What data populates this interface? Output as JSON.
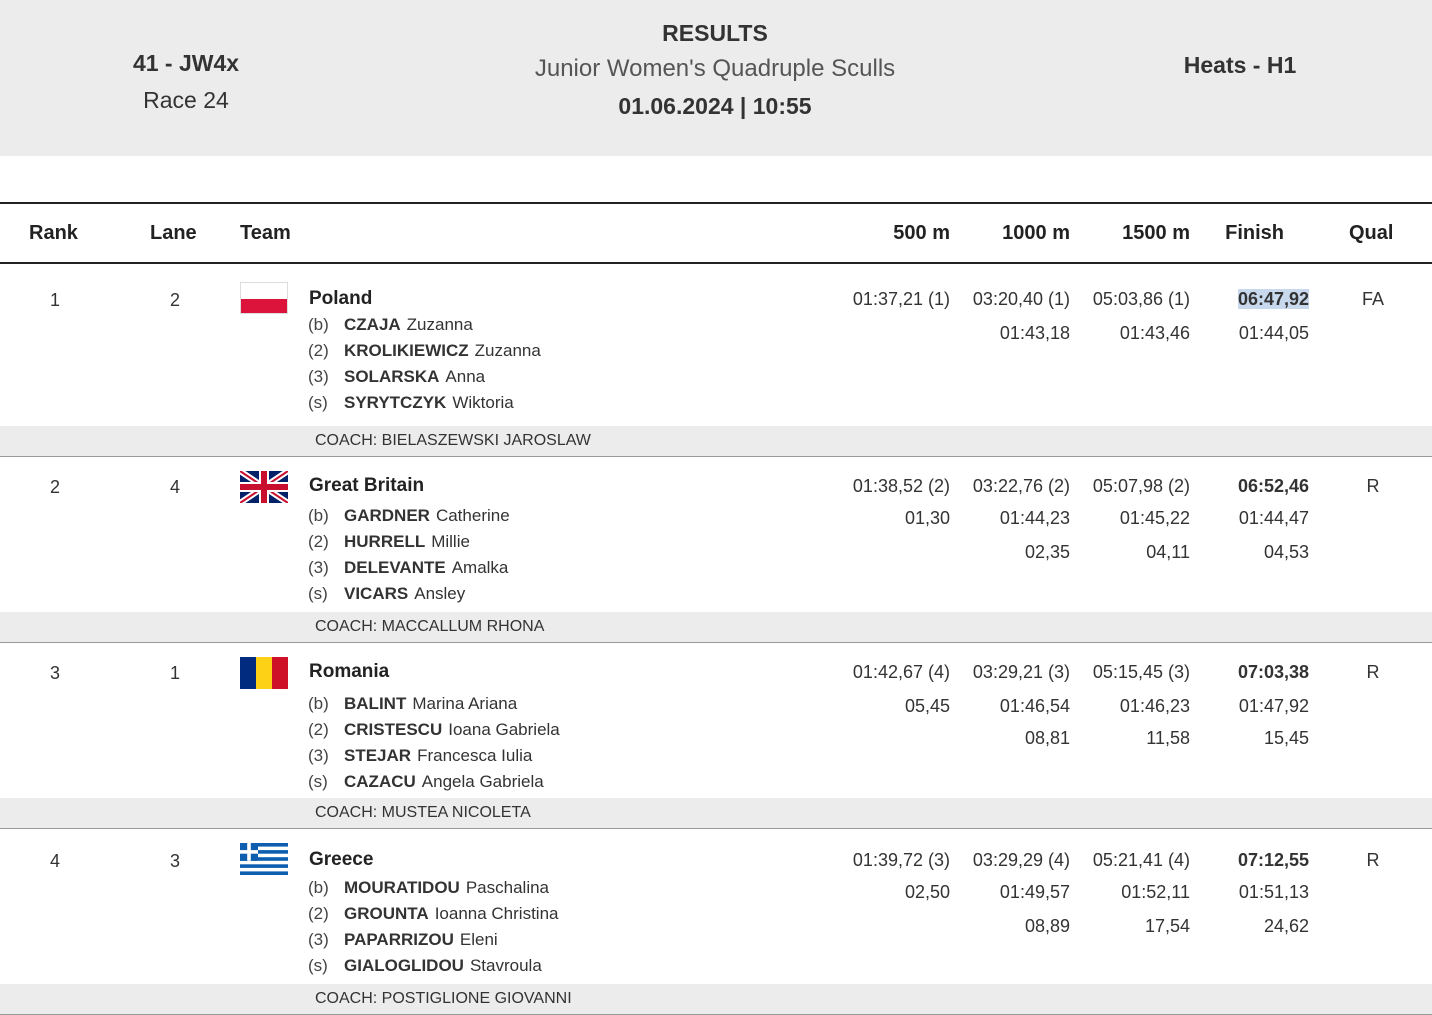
{
  "header": {
    "race_code": "41 - JW4x",
    "race_number": "Race 24",
    "results_label": "RESULTS",
    "event_name": "Junior Women's Quadruple Sculls",
    "datetime": "01.06.2024 | 10:55",
    "phase": "Heats - H1"
  },
  "columns": {
    "rank": "Rank",
    "lane": "Lane",
    "team": "Team",
    "split500": "500 m",
    "split1000": "1000 m",
    "split1500": "1500 m",
    "finish": "Finish",
    "qual": "Qual"
  },
  "entries": [
    {
      "rank": "1",
      "lane": "2",
      "country": "Poland",
      "flag": "poland-flag-icon",
      "crew": [
        {
          "pos": "(b)",
          "last": "CZAJA",
          "first": "Zuzanna"
        },
        {
          "pos": "(2)",
          "last": "KROLIKIEWICZ",
          "first": "Zuzanna"
        },
        {
          "pos": "(3)",
          "last": "SOLARSKA",
          "first": "Anna"
        },
        {
          "pos": "(s)",
          "last": "SYRYTCZYK",
          "first": "Wiktoria"
        }
      ],
      "coach": "COACH: BIELASZEWSKI JAROSLAW",
      "s500": "01:37,21 (1)",
      "s1000": "03:20,40 (1)",
      "s1500": "05:03,86 (1)",
      "finish": "06:47,92",
      "p500": "",
      "p1000": "01:43,18",
      "p1500": "01:43,46",
      "pfin": "01:44,05",
      "d1000": "",
      "d1500": "",
      "dfin": "",
      "qual": "FA"
    },
    {
      "rank": "2",
      "lane": "4",
      "country": "Great Britain",
      "flag": "great-britain-flag-icon",
      "crew": [
        {
          "pos": "(b)",
          "last": "GARDNER",
          "first": "Catherine"
        },
        {
          "pos": "(2)",
          "last": "HURRELL",
          "first": "Millie"
        },
        {
          "pos": "(3)",
          "last": "DELEVANTE",
          "first": "Amalka"
        },
        {
          "pos": "(s)",
          "last": "VICARS",
          "first": "Ansley"
        }
      ],
      "coach": "COACH: MACCALLUM RHONA",
      "s500": "01:38,52 (2)",
      "s1000": "03:22,76 (2)",
      "s1500": "05:07,98 (2)",
      "finish": "06:52,46",
      "p500": "01,30",
      "p1000": "01:44,23",
      "p1500": "01:45,22",
      "pfin": "01:44,47",
      "d1000": "02,35",
      "d1500": "04,11",
      "dfin": "04,53",
      "qual": "R"
    },
    {
      "rank": "3",
      "lane": "1",
      "country": "Romania",
      "flag": "romania-flag-icon",
      "crew": [
        {
          "pos": "(b)",
          "last": "BALINT",
          "first": "Marina Ariana"
        },
        {
          "pos": "(2)",
          "last": "CRISTESCU",
          "first": "Ioana Gabriela"
        },
        {
          "pos": "(3)",
          "last": "STEJAR",
          "first": "Francesca Iulia"
        },
        {
          "pos": "(s)",
          "last": "CAZACU",
          "first": "Angela Gabriela"
        }
      ],
      "coach": "COACH: MUSTEA NICOLETA",
      "s500": "01:42,67 (4)",
      "s1000": "03:29,21 (3)",
      "s1500": "05:15,45 (3)",
      "finish": "07:03,38",
      "p500": "05,45",
      "p1000": "01:46,54",
      "p1500": "01:46,23",
      "pfin": "01:47,92",
      "d1000": "08,81",
      "d1500": "11,58",
      "dfin": "15,45",
      "qual": "R"
    },
    {
      "rank": "4",
      "lane": "3",
      "country": "Greece",
      "flag": "greece-flag-icon",
      "crew": [
        {
          "pos": "(b)",
          "last": "MOURATIDOU",
          "first": "Paschalina"
        },
        {
          "pos": "(2)",
          "last": "GROUNTA",
          "first": "Ioanna Christina"
        },
        {
          "pos": "(3)",
          "last": "PAPARRIZOU",
          "first": "Eleni"
        },
        {
          "pos": "(s)",
          "last": "GIALOGLIDOU",
          "first": "Stavroula"
        }
      ],
      "coach": "COACH: POSTIGLIONE GIOVANNI",
      "s500": "01:39,72 (3)",
      "s1000": "03:29,29 (4)",
      "s1500": "05:21,41 (4)",
      "finish": "07:12,55",
      "p500": "02,50",
      "p1000": "01:49,57",
      "p1500": "01:52,11",
      "pfin": "01:51,13",
      "d1000": "08,89",
      "d1500": "17,54",
      "dfin": "24,62",
      "qual": "R"
    }
  ]
}
